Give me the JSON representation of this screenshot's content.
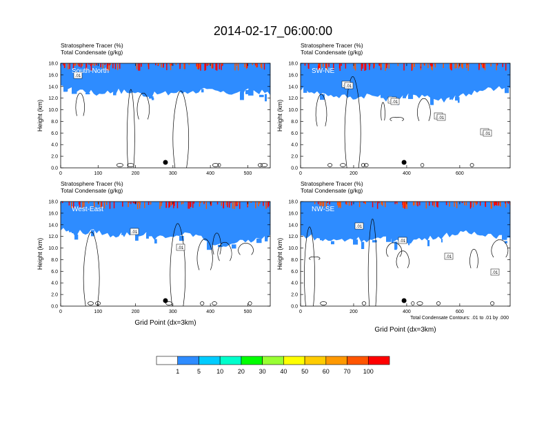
{
  "title": "2014-02-17_06:00:00",
  "footnote": "Total Condensate Contours: .01 to .01 by .000",
  "colorbar": {
    "colors": [
      "#ffffff",
      "#2e8cff",
      "#00ccff",
      "#00ffcc",
      "#00ff00",
      "#99ff33",
      "#ffff00",
      "#ffcc00",
      "#ff9900",
      "#ff5500",
      "#ff0000"
    ],
    "labels": [
      "1",
      "5",
      "10",
      "20",
      "30",
      "40",
      "50",
      "60",
      "70",
      "100"
    ]
  },
  "chart_data": [
    {
      "type": "heatmap",
      "field_label": "Stratosphere Tracer   (%)",
      "contour_label": "Total Condensate   (g/kg)",
      "panel_label": "South-North",
      "ylabel": "Height (km)",
      "xlabel": "",
      "ylim": [
        0,
        18
      ],
      "yticks": [
        "0.0",
        "2.0",
        "4.0",
        "6.0",
        "8.0",
        "10.0",
        "12.0",
        "14.0",
        "16.0",
        "18.0"
      ],
      "xlim": [
        0,
        560
      ],
      "xticks": [
        0,
        100,
        200,
        300,
        400,
        500
      ],
      "tracer_base_km": [
        13.8,
        13.4,
        12.8,
        13.2,
        13.0,
        12.4,
        12.8,
        13.0,
        13.4,
        13.0,
        12.8,
        13.2,
        12.6
      ],
      "contour_values": [
        ".01"
      ],
      "marker_x": 280
    },
    {
      "type": "heatmap",
      "field_label": "Stratosphere Tracer   (%)",
      "contour_label": "Total Condensate   (g/kg)",
      "panel_label": "SW-NE",
      "ylabel": "Height (km)",
      "xlabel": "",
      "ylim": [
        0,
        18
      ],
      "yticks": [
        "0.0",
        "2.0",
        "4.0",
        "6.0",
        "8.0",
        "10.0",
        "12.0",
        "14.0",
        "16.0",
        "18.0"
      ],
      "xlim": [
        0,
        790
      ],
      "xticks": [
        0,
        200,
        400,
        600
      ],
      "tracer_base_km": [
        13.6,
        13.0,
        12.4,
        12.0,
        12.6,
        11.8,
        12.2,
        12.6,
        11.6,
        12.4,
        13.0,
        13.6,
        13.8
      ],
      "contour_values": [
        ".01",
        ".01",
        ".01",
        ".01",
        ".01",
        ".01",
        ".01",
        ".01"
      ],
      "marker_x": 390
    },
    {
      "type": "heatmap",
      "field_label": "Stratosphere Tracer   (%)",
      "contour_label": "Total Condensate   (g/kg)",
      "panel_label": "West-East",
      "ylabel": "Height (km)",
      "xlabel": "Grid Point (dx=3km)",
      "ylim": [
        0,
        18
      ],
      "yticks": [
        "0.0",
        "2.0",
        "4.0",
        "6.0",
        "8.0",
        "10.0",
        "12.0",
        "14.0",
        "16.0",
        "18.0"
      ],
      "xlim": [
        0,
        560
      ],
      "xticks": [
        0,
        100,
        200,
        300,
        400,
        500
      ],
      "tracer_base_km": [
        13.2,
        12.6,
        12.8,
        12.2,
        12.4,
        12.2,
        11.6,
        12.4,
        12.0,
        10.2,
        11.0,
        11.2,
        12.0
      ],
      "contour_values": [
        ".01",
        ".01"
      ],
      "marker_x": 280
    },
    {
      "type": "heatmap",
      "field_label": "Stratosphere Tracer   (%)",
      "contour_label": "Total Condensate   (g/kg)",
      "panel_label": "NW-SE",
      "ylabel": "Height (km)",
      "xlabel": "Grid Point (dx=3km)",
      "ylim": [
        0,
        18
      ],
      "yticks": [
        "0.0",
        "2.0",
        "4.0",
        "6.0",
        "8.0",
        "10.0",
        "12.0",
        "14.0",
        "16.0",
        "18.0"
      ],
      "xlim": [
        0,
        790
      ],
      "xticks": [
        0,
        200,
        400,
        600
      ],
      "tracer_base_km": [
        12.2,
        11.6,
        11.2,
        11.6,
        11.4,
        11.8,
        11.0,
        11.6,
        12.0,
        12.4,
        12.6,
        12.2,
        11.4
      ],
      "contour_values": [
        ".01",
        ".01",
        ".01",
        ".01"
      ],
      "marker_x": 390
    }
  ]
}
